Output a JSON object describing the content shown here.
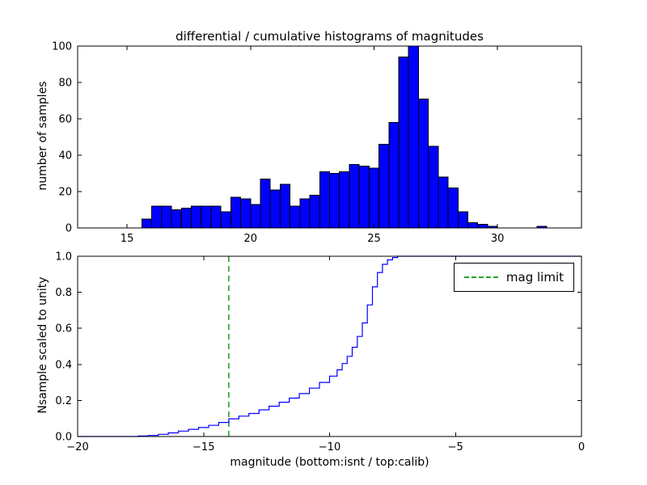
{
  "figure": {
    "title": "differential / cumulative histograms of magnitudes",
    "background": "#ffffff"
  },
  "colors": {
    "bar_fill": "#0000ff",
    "bar_edge": "#000000",
    "cumulative_line": "#0000ff",
    "mag_limit_line": "#2ca02c",
    "axis": "#000000"
  },
  "chart_data": [
    {
      "type": "bar",
      "role": "differential-histogram",
      "title": "differential / cumulative histograms of magnitudes",
      "ylabel": "number of samples",
      "xlim": [
        13,
        33.4
      ],
      "ylim": [
        0,
        100
      ],
      "xticks": [
        15,
        20,
        25,
        30
      ],
      "xtick_labels": [
        "15",
        "20",
        "25",
        "30"
      ],
      "yticks": [
        0,
        20,
        40,
        60,
        80,
        100
      ],
      "ytick_labels": [
        "0",
        "20",
        "40",
        "60",
        "80",
        "100"
      ],
      "grid": false,
      "bin_start": 15.6,
      "bin_width": 0.4,
      "counts": [
        5,
        12,
        12,
        10,
        11,
        12,
        12,
        12,
        9,
        17,
        16,
        13,
        27,
        21,
        24,
        12,
        16,
        18,
        31,
        30,
        31,
        35,
        34,
        33,
        46,
        58,
        94,
        100,
        71,
        45,
        28,
        22,
        9,
        3,
        2,
        1,
        0,
        0,
        0,
        0,
        1
      ]
    },
    {
      "type": "line",
      "role": "cumulative-histogram",
      "xlabel": "magnitude (bottom:isnt / top:calib)",
      "ylabel": "Nsample scaled to unity",
      "xlim": [
        -20,
        0
      ],
      "ylim": [
        0,
        1.0
      ],
      "xticks": [
        -20,
        -15,
        -10,
        -5,
        0
      ],
      "xtick_labels": [
        "−20",
        "−15",
        "−10",
        "−5",
        "0"
      ],
      "yticks": [
        0,
        0.2,
        0.4,
        0.6,
        0.8,
        1.0
      ],
      "ytick_labels": [
        "0.0",
        "0.2",
        "0.4",
        "0.6",
        "0.8",
        "1.0"
      ],
      "grid": false,
      "line_style": "steps-post",
      "step_points": [
        [
          -20,
          0
        ],
        [
          -17.6,
          0.003
        ],
        [
          -17.2,
          0.006
        ],
        [
          -16.8,
          0.012
        ],
        [
          -16.4,
          0.02
        ],
        [
          -16.0,
          0.03
        ],
        [
          -15.6,
          0.04
        ],
        [
          -15.2,
          0.05
        ],
        [
          -14.8,
          0.062
        ],
        [
          -14.4,
          0.078
        ],
        [
          -14.0,
          0.098
        ],
        [
          -13.6,
          0.113
        ],
        [
          -13.2,
          0.128
        ],
        [
          -12.8,
          0.148
        ],
        [
          -12.4,
          0.168
        ],
        [
          -12.0,
          0.19
        ],
        [
          -11.6,
          0.213
        ],
        [
          -11.2,
          0.238
        ],
        [
          -10.8,
          0.268
        ],
        [
          -10.4,
          0.3
        ],
        [
          -10.0,
          0.335
        ],
        [
          -9.7,
          0.37
        ],
        [
          -9.5,
          0.405
        ],
        [
          -9.3,
          0.445
        ],
        [
          -9.1,
          0.495
        ],
        [
          -8.9,
          0.555
        ],
        [
          -8.7,
          0.63
        ],
        [
          -8.5,
          0.73
        ],
        [
          -8.3,
          0.83
        ],
        [
          -8.1,
          0.91
        ],
        [
          -7.9,
          0.955
        ],
        [
          -7.7,
          0.98
        ],
        [
          -7.5,
          0.993
        ],
        [
          -7.3,
          1.0
        ],
        [
          0,
          1.0
        ]
      ],
      "mag_limit_x": -14,
      "legend": {
        "label": "mag limit",
        "position": "upper right"
      }
    }
  ]
}
